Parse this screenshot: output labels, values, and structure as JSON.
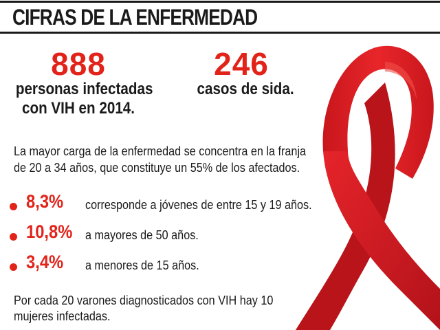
{
  "header": {
    "title": "CIFRAS DE LA ENFERMEDAD"
  },
  "stats": [
    {
      "number": "888",
      "label_line1": "personas infectadas",
      "label_line2": "con VIH en 2014."
    },
    {
      "number": "246",
      "label_line1": "casos de sida.",
      "label_line2": ""
    }
  ],
  "intro": {
    "line1": "La mayor carga de la enfermedad se concentra en la franja",
    "line2": "de 20 a 34 años, que constituye un 55% de los afectados."
  },
  "bullets": [
    {
      "pct": "8,3%",
      "text": "corresponde a jóvenes de entre 15 y 19 años."
    },
    {
      "pct": "10,8%",
      "text": "a mayores de 50 años."
    },
    {
      "pct": "3,4%",
      "text": "a menores de 15 años."
    }
  ],
  "footer": {
    "line1": "Por cada 20 varones diagnosticados  con VIH hay 10",
    "line2": "mujeres infectadas."
  },
  "colors": {
    "accent": "#e2231a",
    "ribbon_dark": "#b8141a",
    "text": "#1a1a1a"
  },
  "icons": {
    "ribbon": "red-awareness-ribbon-icon"
  }
}
